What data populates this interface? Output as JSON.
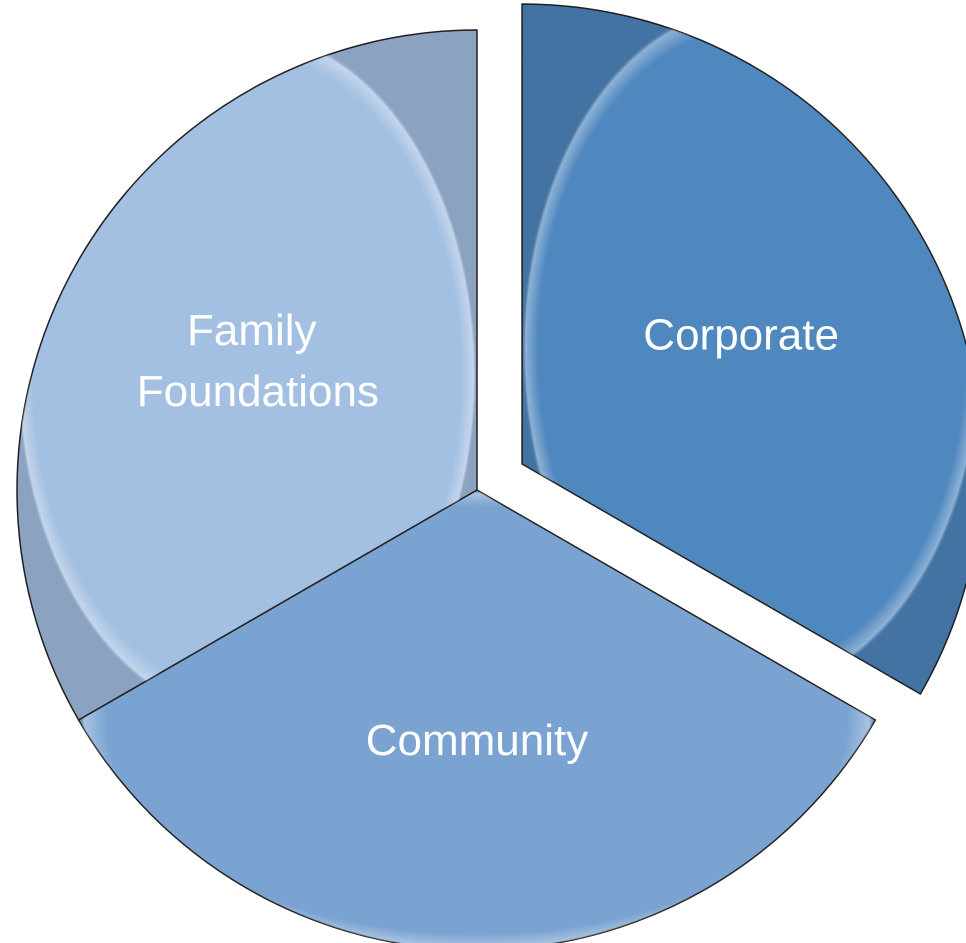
{
  "chart_data": {
    "type": "pie",
    "categories": [
      "Corporate",
      "Community",
      "Family Foundations"
    ],
    "values": [
      33.3,
      33.3,
      33.3
    ],
    "colors": [
      "#4f87bf",
      "#7aa3d1",
      "#a3bfe2"
    ]
  }
}
